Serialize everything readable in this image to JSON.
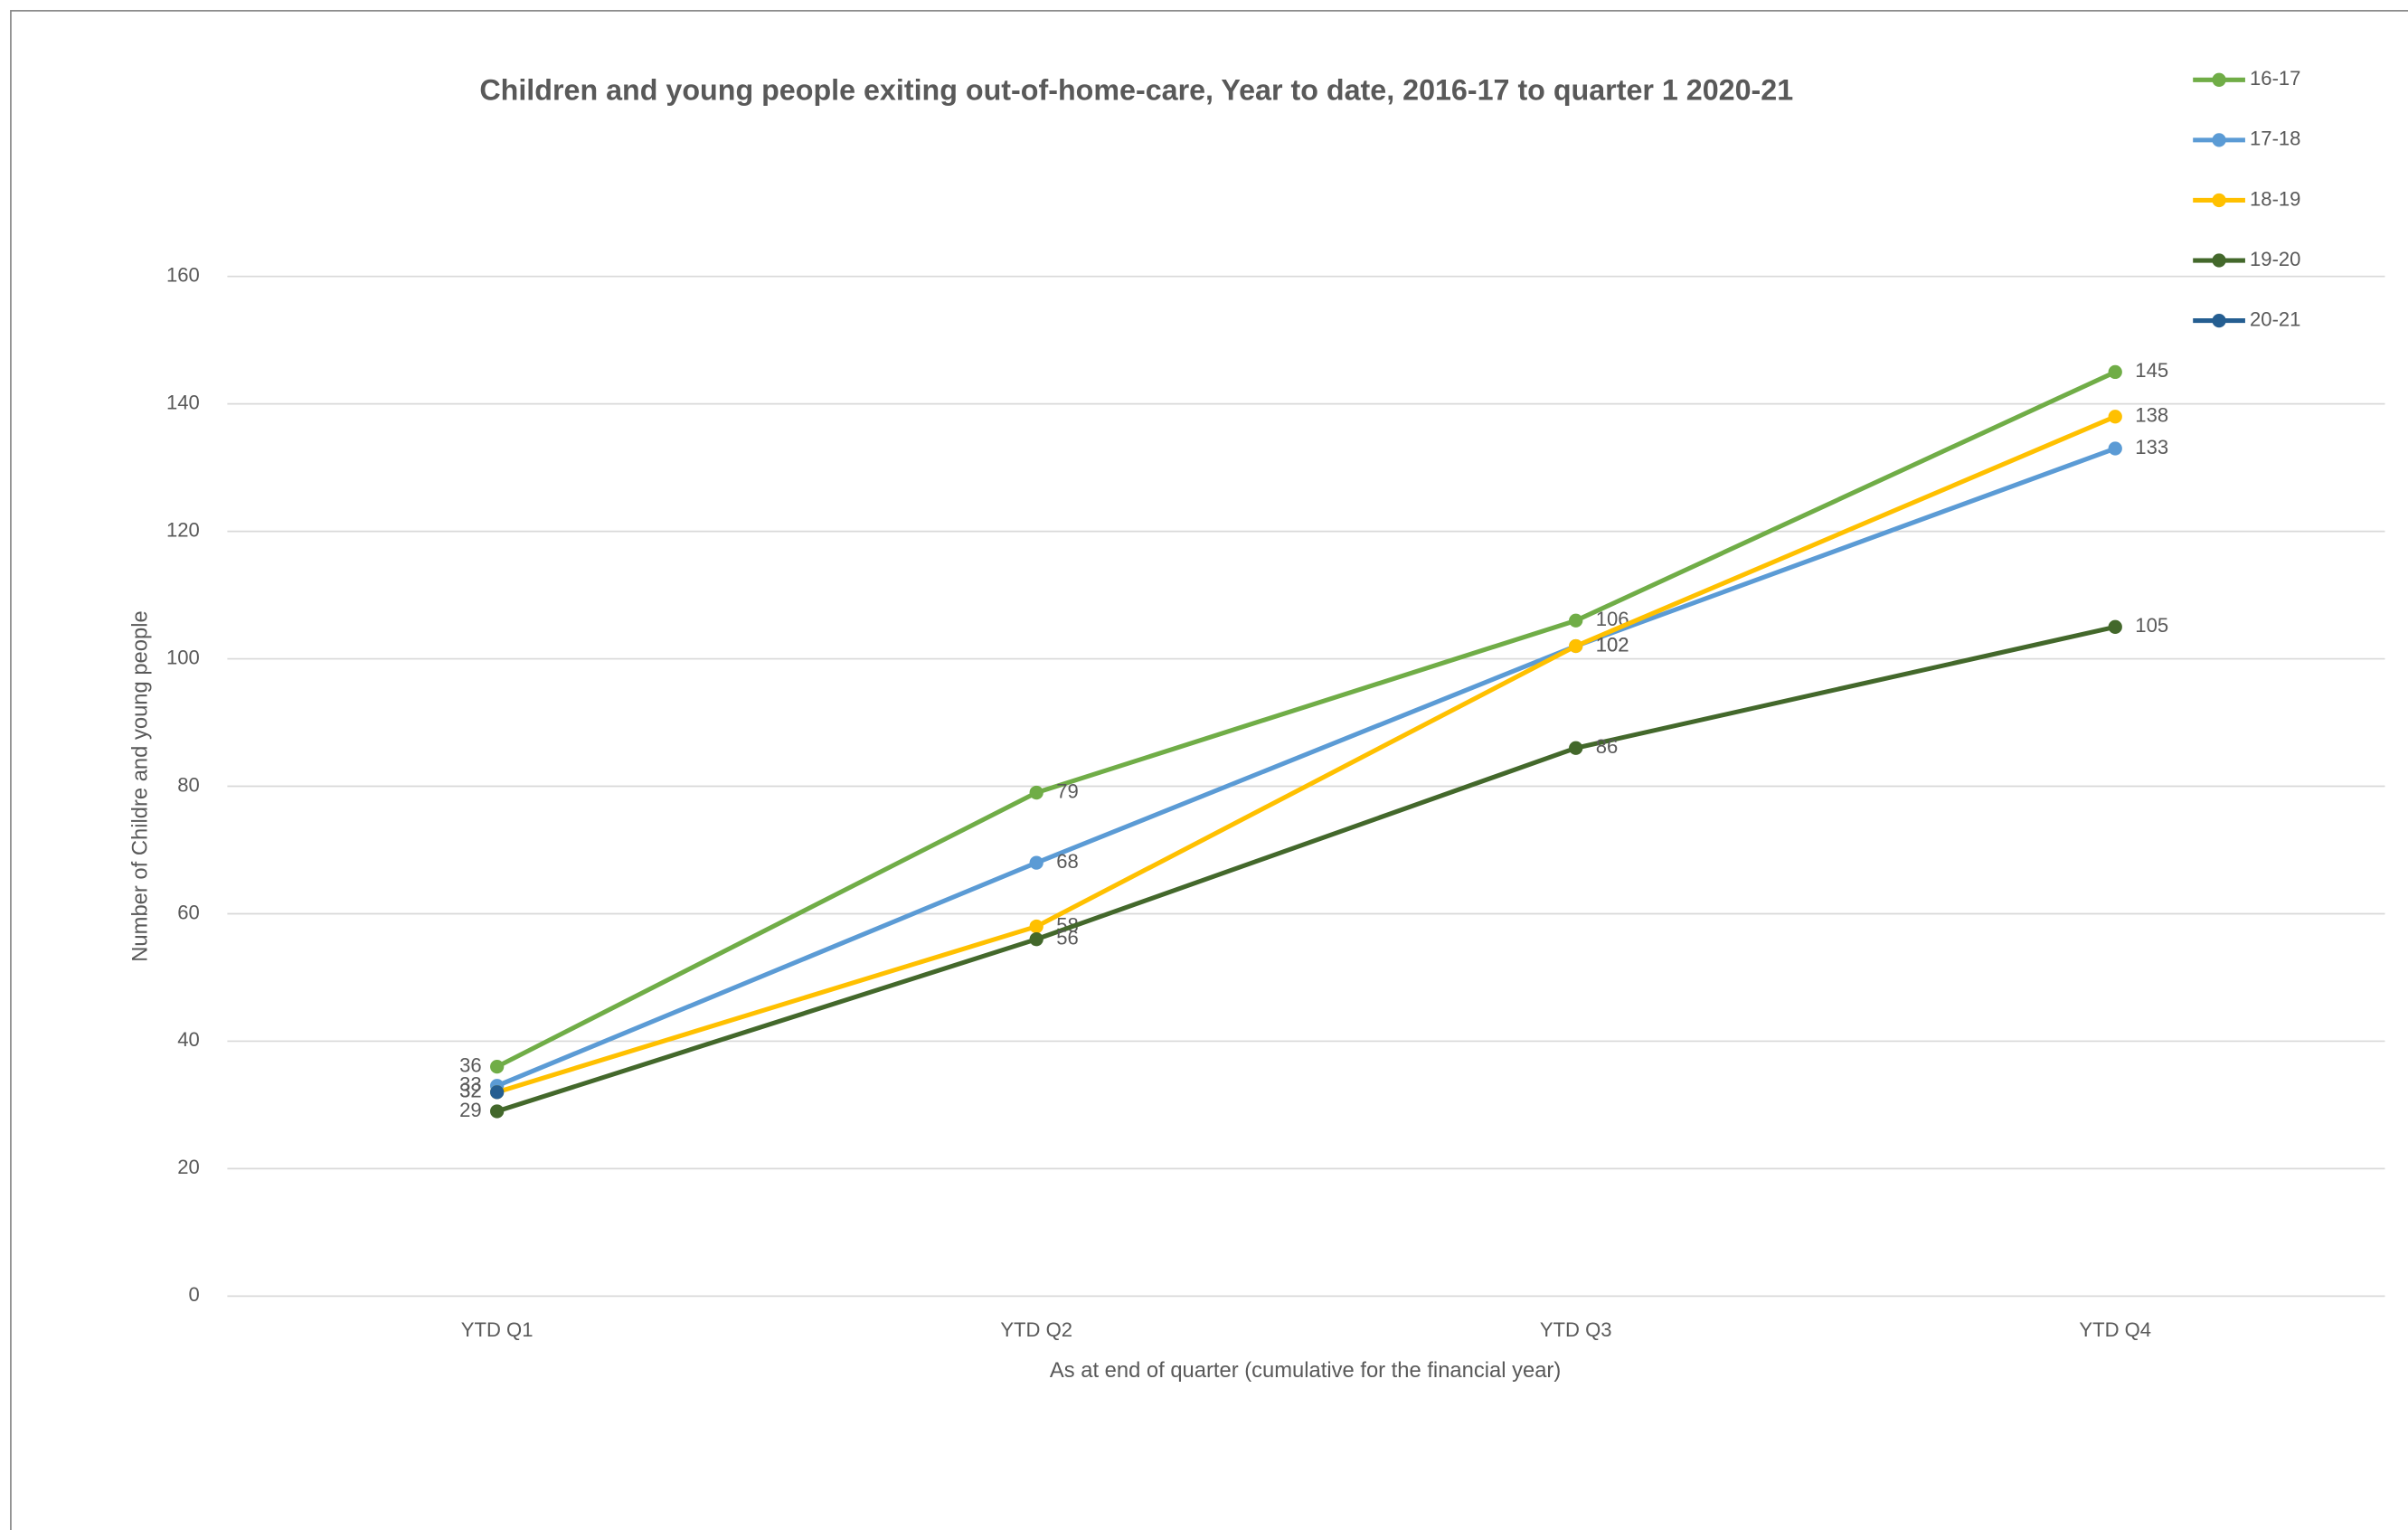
{
  "chart_data": {
    "type": "line",
    "title": "Children and young people exiting out-of-home-care, Year to date, 2016-17 to quarter 1 2020-21",
    "x_label": "As at end of quarter (cumulative for the financial year)",
    "y_label": "Number of Childre and young people",
    "categories": [
      "YTD Q1",
      "YTD Q2",
      "YTD Q3",
      "YTD Q4"
    ],
    "series": [
      {
        "name": "16-17",
        "color": "#70ad47",
        "values": [
          36,
          79,
          106,
          145
        ]
      },
      {
        "name": "17-18",
        "color": "#5b9bd5",
        "values": [
          33,
          68,
          102,
          133
        ]
      },
      {
        "name": "18-19",
        "color": "#ffc000",
        "values": [
          32,
          58,
          102,
          138
        ]
      },
      {
        "name": "19-20",
        "color": "#43682b",
        "values": [
          29,
          56,
          86,
          105
        ]
      },
      {
        "name": "20-21",
        "color": "#255e91",
        "values": [
          32,
          null,
          null,
          null
        ]
      }
    ],
    "ylim": [
      0,
      160
    ],
    "yticks": [
      0,
      20,
      40,
      60,
      80,
      100,
      120,
      140,
      160
    ],
    "grid": true,
    "legend": "top-right",
    "data_labels": true
  }
}
